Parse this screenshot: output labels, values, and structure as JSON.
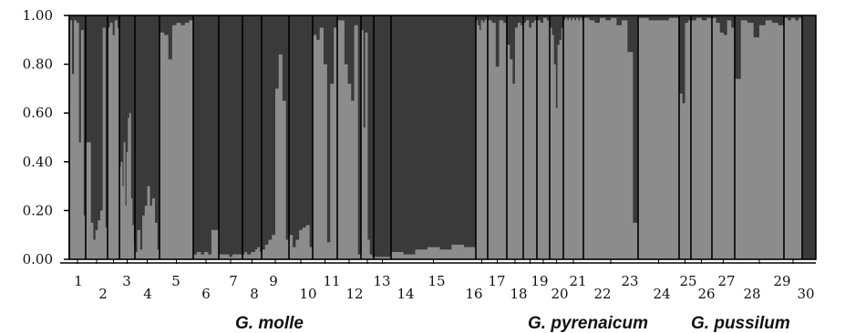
{
  "chart_data": {
    "type": "bar",
    "stacked": true,
    "colors": {
      "lower_cluster": "#8c8c8c",
      "upper_cluster": "#3a3a3a",
      "separator": "#000000"
    },
    "ylim": [
      0,
      1
    ],
    "yticks": [
      "1.00",
      "0.80",
      "0.60",
      "0.40",
      "0.20",
      "0.00"
    ],
    "y_tick_values": [
      1.0,
      0.8,
      0.6,
      0.4,
      0.2,
      0.0
    ],
    "populations": [
      {
        "label": "1",
        "values": [
          0.98,
          0.76,
          0.98,
          0.97,
          0.48,
          0.94,
          0.18
        ]
      },
      {
        "label": "2",
        "values": [
          0.48,
          0.48,
          0.15,
          0.08,
          0.12,
          0.16,
          0.2,
          0.95,
          0.13
        ]
      },
      {
        "label": "3",
        "values": [
          0.95,
          0.97,
          0.92,
          0.98,
          0.95
        ]
      },
      {
        "label": "4",
        "values": [
          0.38,
          0.4,
          0.3,
          0.48,
          0.22,
          0.44,
          0.58,
          0.6,
          0.25,
          0.14,
          0.06
        ]
      },
      {
        "label": "5",
        "values": [
          0.03,
          0.12,
          0.04,
          0.18,
          0.22,
          0.3,
          0.22,
          0.25,
          0.15,
          0.04
        ]
      },
      {
        "label": "6",
        "values": [
          0.93,
          0.92,
          0.82,
          0.96,
          0.97,
          0.96,
          0.97,
          0.98
        ]
      },
      {
        "label": "7",
        "values": [
          0.02,
          0.03,
          0.02,
          0.03,
          0.02,
          0.12,
          0.12
        ]
      },
      {
        "label": "8",
        "values": [
          0.02,
          0.02,
          0.02,
          0.01,
          0.02,
          0.02,
          0.02
        ]
      },
      {
        "label": "9",
        "values": [
          0.02,
          0.03,
          0.02,
          0.02,
          0.03,
          0.03,
          0.04,
          0.05,
          0.03
        ]
      },
      {
        "label": "10",
        "values": [
          0.04,
          0.06,
          0.08,
          0.1,
          0.7,
          0.84,
          0.65,
          0.08
        ]
      },
      {
        "label": "11",
        "values": [
          0.1,
          0.05,
          0.08,
          0.12,
          0.13,
          0.14,
          0.05
        ]
      },
      {
        "label": "12",
        "values": [
          0.92,
          0.9,
          0.95,
          0.8,
          0.07,
          0.72,
          0.95
        ]
      },
      {
        "label": "13",
        "values": [
          0.98,
          0.98,
          0.8,
          0.72,
          0.65,
          0.96,
          0.02
        ]
      },
      {
        "label": "14",
        "values": [
          0.94,
          0.54,
          0.93,
          0.08,
          0.02,
          0.01
        ]
      },
      {
        "label": "15",
        "values": [
          0.01,
          0.01,
          0.01,
          0.01,
          0.01,
          0.01,
          0.01,
          0.01
        ]
      },
      {
        "label": "16",
        "values": [
          0.03,
          0.02,
          0.04,
          0.05,
          0.04,
          0.06,
          0.05
        ]
      },
      {
        "label": "17",
        "values": [
          0.98,
          0.96,
          0.94,
          0.98,
          0.97,
          0.98,
          0.99
        ]
      },
      {
        "label": "18",
        "values": [
          0.98,
          0.97,
          0.79,
          0.98,
          0.97
        ]
      },
      {
        "label": "19",
        "values": [
          0.88,
          0.82,
          0.72,
          0.95,
          0.97,
          0.96
        ]
      },
      {
        "label": "20",
        "values": [
          0.97,
          0.98,
          0.95,
          0.97,
          0.98
        ]
      },
      {
        "label": "21",
        "values": [
          0.98,
          0.97,
          0.99,
          0.98
        ]
      },
      {
        "label": "22",
        "values": [
          0.95,
          0.92,
          0.8,
          0.62,
          0.88,
          0.9,
          0.95
        ]
      },
      {
        "label": "23",
        "values": [
          0.98,
          0.99,
          0.98,
          0.99,
          0.98,
          0.99,
          0.98,
          0.99,
          0.98,
          0.99,
          0.98
        ]
      },
      {
        "label": "24",
        "values": [
          0.99,
          0.98,
          0.97,
          0.99,
          0.98,
          0.99,
          0.96,
          0.98,
          0.85,
          0.15
        ]
      },
      {
        "label": "25",
        "values": [
          0.99,
          0.98,
          0.98,
          0.99
        ]
      },
      {
        "label": "26",
        "values": [
          0.68,
          0.64,
          0.97,
          0.98
        ]
      },
      {
        "label": "27",
        "values": [
          0.98,
          0.99,
          0.98,
          0.99
        ]
      },
      {
        "label": "28",
        "values": [
          0.99,
          0.97,
          0.93,
          0.92,
          0.98,
          0.95
        ]
      },
      {
        "label": "29",
        "values": [
          0.74,
          0.98,
          0.97,
          0.91,
          0.96,
          0.98,
          0.97,
          0.96
        ]
      },
      {
        "label": "30",
        "values": [
          0.99,
          0.98,
          0.99,
          0.98,
          0.99
        ]
      }
    ],
    "group_labels": [
      "G. molle",
      "G. pyrenaicum",
      "G. pussilum"
    ]
  }
}
